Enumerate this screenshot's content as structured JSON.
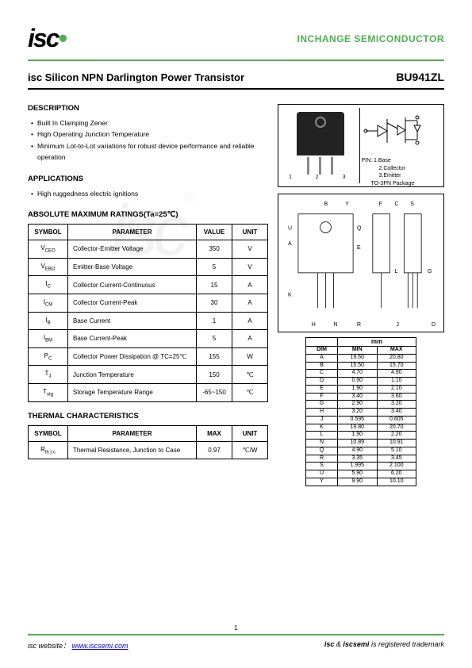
{
  "header": {
    "logo_text": "isc",
    "company": "INCHANGE SEMICONDUCTOR"
  },
  "title": {
    "left": "isc Silicon NPN Darlington Power Transistor",
    "right": "BU941ZL"
  },
  "description": {
    "heading": "DESCRIPTION",
    "items": [
      "Built In Clamping Zener",
      "High Operating Junction Temperature",
      "Minimum Lot-to-Lot variations for robust device performance and reliable operation"
    ]
  },
  "applications": {
    "heading": "APPLICATIONS",
    "items": [
      "High ruggedness electric ignitions"
    ]
  },
  "package": {
    "pin_numbers": "1  2  3",
    "pin_label": "PIN: 1.Base",
    "pin2": "2.Collector",
    "pin3": "3.Emitter",
    "pkg_name": "TO-3PN Package"
  },
  "ratings": {
    "heading": "ABSOLUTE MAXIMUM RATINGS(Ta=25℃)",
    "columns": [
      "SYMBOL",
      "PARAMETER",
      "VALUE",
      "UNIT"
    ],
    "rows": [
      {
        "sym": "V",
        "sub": "CEO",
        "param": "Collector-Emitter Voltage",
        "val": "350",
        "unit": "V"
      },
      {
        "sym": "V",
        "sub": "EBO",
        "param": "Emitter-Base Voltage",
        "val": "5",
        "unit": "V"
      },
      {
        "sym": "I",
        "sub": "C",
        "param": "Collector Current-Continuous",
        "val": "15",
        "unit": "A"
      },
      {
        "sym": "I",
        "sub": "CM",
        "param": "Collector Current-Peak",
        "val": "30",
        "unit": "A"
      },
      {
        "sym": "I",
        "sub": "B",
        "param": "Base Current",
        "val": "1",
        "unit": "A"
      },
      {
        "sym": "I",
        "sub": "BM",
        "param": "Base Current-Peak",
        "val": "5",
        "unit": "A"
      },
      {
        "sym": "P",
        "sub": "C",
        "param": "Collector Power Dissipation @ TC=25℃",
        "val": "155",
        "unit": "W"
      },
      {
        "sym": "T",
        "sub": "J",
        "param": "Junction Temperature",
        "val": "150",
        "unit": "℃"
      },
      {
        "sym": "T",
        "sub": "stg",
        "param": "Storage Temperature Range",
        "val": "-65~150",
        "unit": "℃"
      }
    ]
  },
  "thermal": {
    "heading": "THERMAL CHARACTERISTICS",
    "columns": [
      "SYMBOL",
      "PARAMETER",
      "MAX",
      "UNIT"
    ],
    "rows": [
      {
        "sym": "R",
        "sub": "th j-c",
        "param": "Thermal Resistance, Junction to Case",
        "val": "0.97",
        "unit": "℃/W"
      }
    ]
  },
  "dimensions": {
    "heading": "mm",
    "cols": [
      "DIM",
      "MIN",
      "MAX"
    ],
    "rows": [
      [
        "A",
        "19.60",
        "20.80"
      ],
      [
        "B",
        "15.50",
        "15.70"
      ],
      [
        "C",
        "4.70",
        "4.90"
      ],
      [
        "D",
        "0.90",
        "1.10"
      ],
      [
        "E",
        "1.90",
        "2.10"
      ],
      [
        "F",
        "3.40",
        "3.60"
      ],
      [
        "G",
        "2.90",
        "3.20"
      ],
      [
        "H",
        "3.20",
        "3.40"
      ],
      [
        "J",
        "0.595",
        "0.605"
      ],
      [
        "K",
        "19.80",
        "20.70"
      ],
      [
        "L",
        "1.90",
        "2.20"
      ],
      [
        "N",
        "10.89",
        "10.91"
      ],
      [
        "Q",
        "4.90",
        "5.10"
      ],
      [
        "R",
        "3.35",
        "3.45"
      ],
      [
        "S",
        "1.995",
        "2.100"
      ],
      [
        "U",
        "5.90",
        "6.20"
      ],
      [
        "Y",
        "9.90",
        "10.10"
      ]
    ]
  },
  "footer": {
    "left_label": "isc website：",
    "url": "www.iscsemi.com",
    "right": "isc & iscsemi is registered trademark",
    "page": "1"
  }
}
